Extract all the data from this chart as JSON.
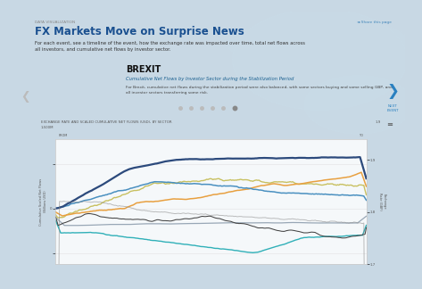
{
  "outer_bg": "#c8d8e4",
  "card_bg": "#f0f4f7",
  "inner_bg": "#f5f8fa",
  "title_label": "DATA VISUALIZATION",
  "title": "FX Markets Move on Surprise News",
  "subtitle": "For each event, see a timeline of the event, how the exchange rate was impacted over time, total net flows across\nall investors, and cumulative net flows by investor sector.",
  "section_title": "BREXIT",
  "chart_subtitle": "Cumulative Net Flows by Investor Sector during the Stabilization Period",
  "chart_desc": "For Brexit, cumulative net flows during the stabilization period were also balanced, with some sectors buying and some selling GBP, and\nall investor sectors transferring some risk.",
  "chart_title": "EXCHANGE RATE AND SCALED CUMULATIVE NET FLOWS (USD), BY SECTOR",
  "left_ylabel": "Cumulative Scaled Net Flows\n(Billions USD)",
  "right_ylabel": "Exchange\nRate (GBP)",
  "left_ytop": "1,500M",
  "share_text": "Share this page",
  "next_text": "NEXT\nEVENT",
  "dots": 6,
  "map_color": "#c8dce8",
  "line_colors": {
    "dark_blue": "#2c4a7c",
    "orange": "#e8a040",
    "blue_med": "#4a90c0",
    "olive": "#c8c060",
    "dark_gray": "#444444",
    "cyan": "#30b0b8",
    "gray_flat": "#8899aa",
    "exch_rate": "#888888"
  }
}
